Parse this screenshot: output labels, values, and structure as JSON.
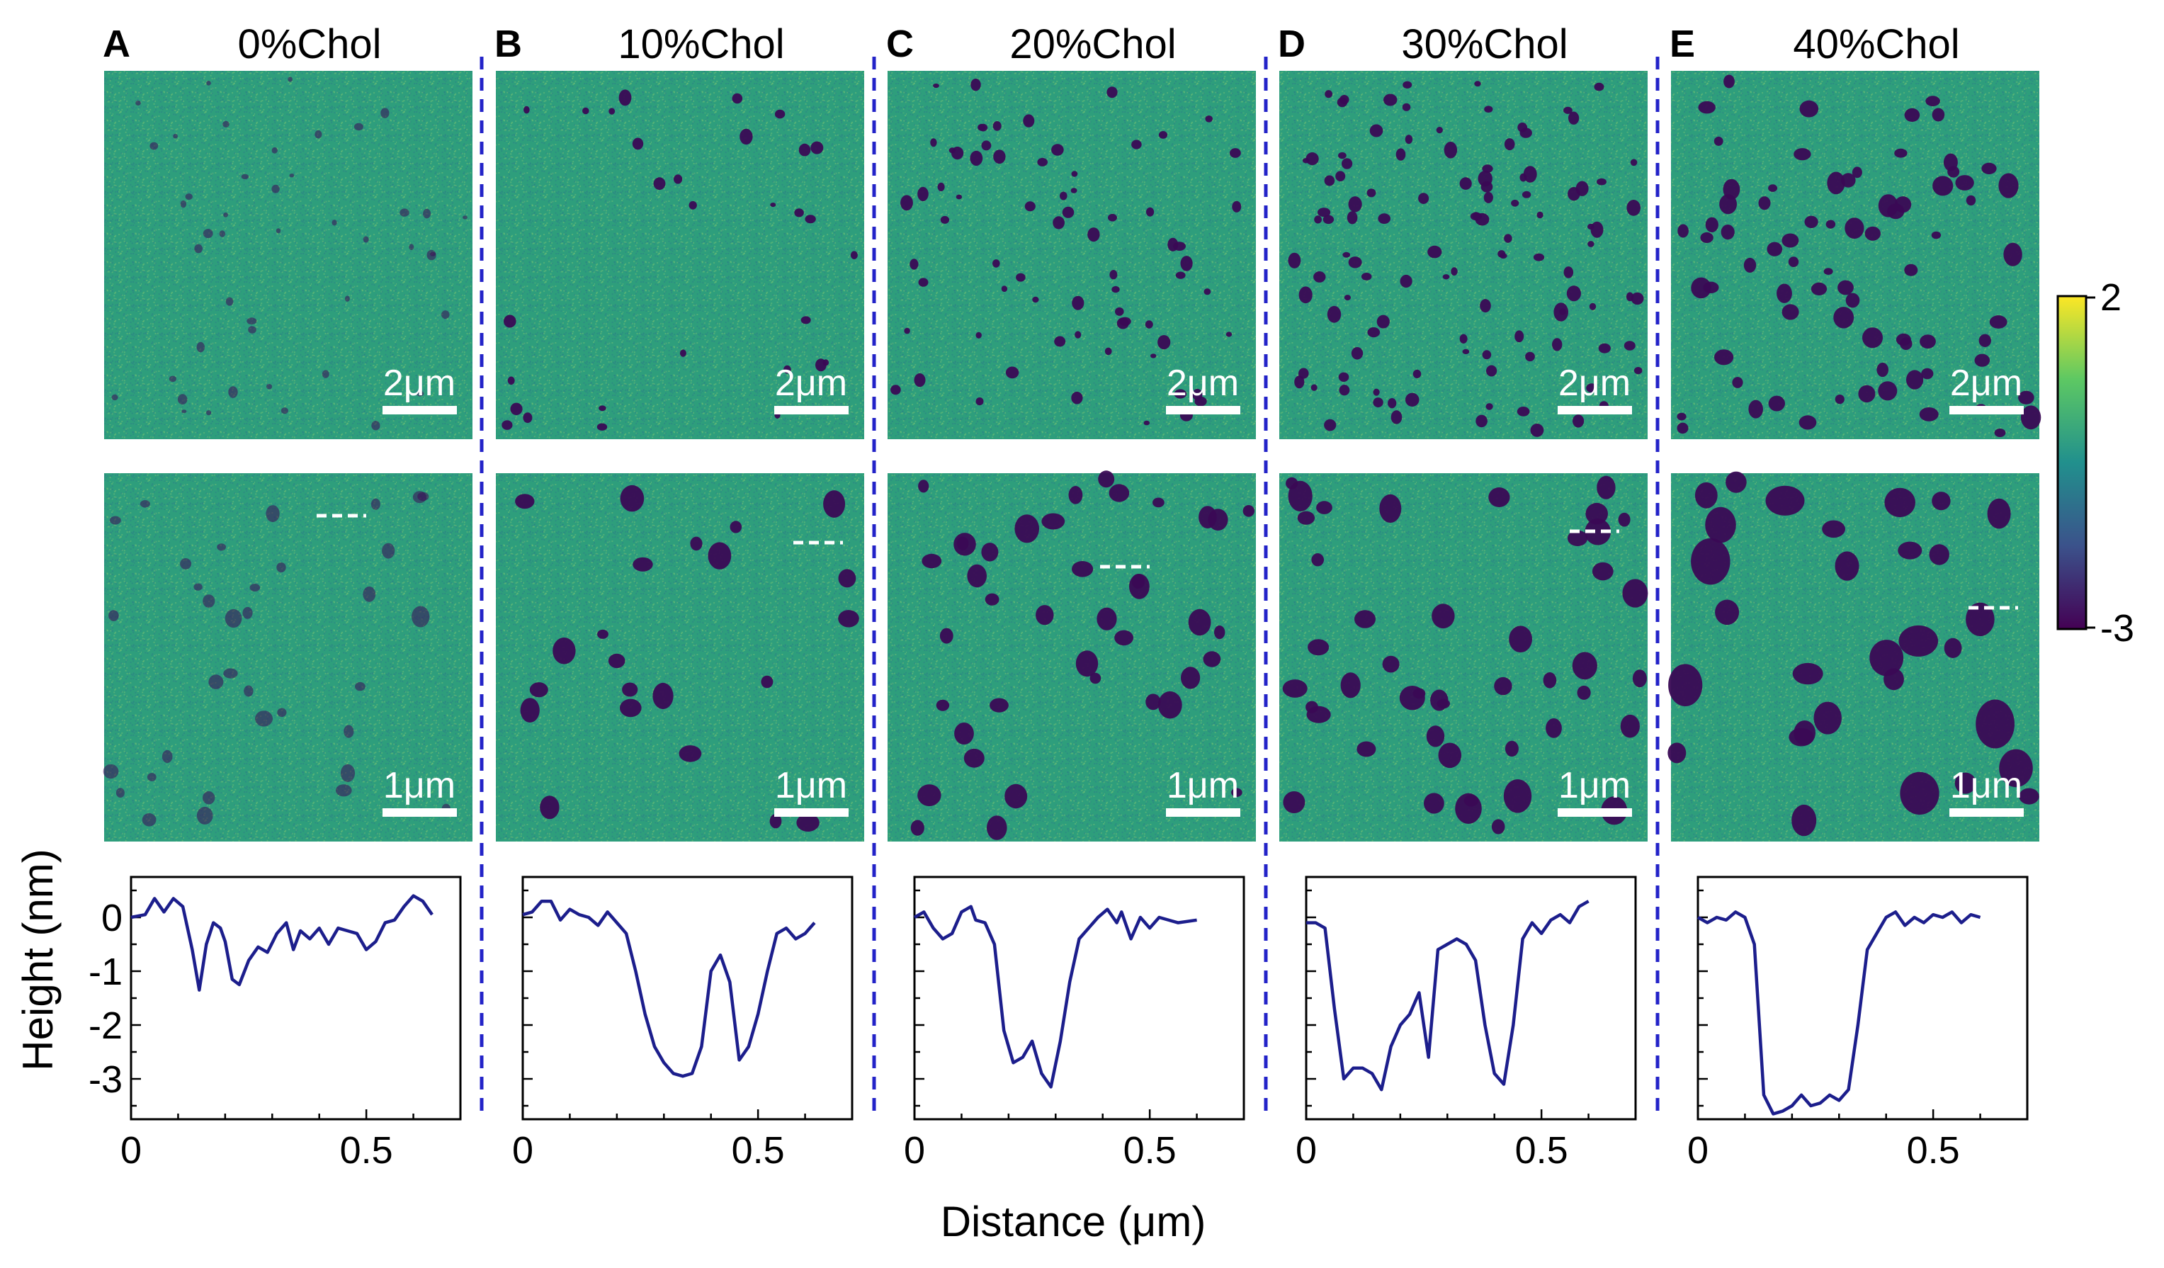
{
  "panels": [
    {
      "letter": "A",
      "title": "0%Chol",
      "scale_top": "2μm",
      "scale_mid": "1μm",
      "dots_top": 45,
      "dots_mid": 35,
      "dot_size": 0.5,
      "profile": [
        [
          0,
          0
        ],
        [
          0.03,
          0.05
        ],
        [
          0.05,
          0.35
        ],
        [
          0.07,
          0.1
        ],
        [
          0.09,
          0.35
        ],
        [
          0.11,
          0.2
        ],
        [
          0.13,
          -0.6
        ],
        [
          0.145,
          -1.35
        ],
        [
          0.16,
          -0.5
        ],
        [
          0.175,
          -0.1
        ],
        [
          0.19,
          -0.2
        ],
        [
          0.2,
          -0.45
        ],
        [
          0.215,
          -1.15
        ],
        [
          0.23,
          -1.25
        ],
        [
          0.25,
          -0.8
        ],
        [
          0.27,
          -0.55
        ],
        [
          0.29,
          -0.65
        ],
        [
          0.31,
          -0.3
        ],
        [
          0.33,
          -0.1
        ],
        [
          0.345,
          -0.6
        ],
        [
          0.36,
          -0.25
        ],
        [
          0.38,
          -0.4
        ],
        [
          0.4,
          -0.2
        ],
        [
          0.42,
          -0.5
        ],
        [
          0.44,
          -0.2
        ],
        [
          0.46,
          -0.25
        ],
        [
          0.48,
          -0.3
        ],
        [
          0.5,
          -0.6
        ],
        [
          0.52,
          -0.45
        ],
        [
          0.54,
          -0.1
        ],
        [
          0.56,
          -0.05
        ],
        [
          0.58,
          0.2
        ],
        [
          0.6,
          0.4
        ],
        [
          0.62,
          0.3
        ],
        [
          0.64,
          0.05
        ]
      ]
    },
    {
      "letter": "B",
      "title": "10%Chol",
      "scale_top": "2μm",
      "scale_mid": "1μm",
      "dots_top": 30,
      "dots_mid": 22,
      "dot_size": 0.9,
      "profile": [
        [
          0,
          0.05
        ],
        [
          0.02,
          0.1
        ],
        [
          0.04,
          0.3
        ],
        [
          0.06,
          0.3
        ],
        [
          0.08,
          -0.05
        ],
        [
          0.1,
          0.15
        ],
        [
          0.12,
          0.05
        ],
        [
          0.14,
          0
        ],
        [
          0.16,
          -0.15
        ],
        [
          0.18,
          0.1
        ],
        [
          0.2,
          -0.1
        ],
        [
          0.22,
          -0.3
        ],
        [
          0.24,
          -1.0
        ],
        [
          0.26,
          -1.8
        ],
        [
          0.28,
          -2.4
        ],
        [
          0.3,
          -2.7
        ],
        [
          0.32,
          -2.9
        ],
        [
          0.34,
          -2.95
        ],
        [
          0.36,
          -2.9
        ],
        [
          0.38,
          -2.4
        ],
        [
          0.4,
          -1.0
        ],
        [
          0.42,
          -0.7
        ],
        [
          0.44,
          -1.2
        ],
        [
          0.46,
          -2.65
        ],
        [
          0.48,
          -2.4
        ],
        [
          0.5,
          -1.8
        ],
        [
          0.52,
          -1.0
        ],
        [
          0.54,
          -0.3
        ],
        [
          0.56,
          -0.2
        ],
        [
          0.58,
          -0.4
        ],
        [
          0.6,
          -0.3
        ],
        [
          0.62,
          -0.1
        ]
      ]
    },
    {
      "letter": "C",
      "title": "20%Chol",
      "scale_top": "2μm",
      "scale_mid": "1μm",
      "dots_top": 70,
      "dots_mid": 40,
      "dot_size": 0.9,
      "profile": [
        [
          0,
          0
        ],
        [
          0.02,
          0.1
        ],
        [
          0.04,
          -0.2
        ],
        [
          0.06,
          -0.4
        ],
        [
          0.08,
          -0.3
        ],
        [
          0.1,
          0.1
        ],
        [
          0.12,
          0.2
        ],
        [
          0.13,
          -0.05
        ],
        [
          0.15,
          -0.1
        ],
        [
          0.17,
          -0.5
        ],
        [
          0.19,
          -2.1
        ],
        [
          0.21,
          -2.7
        ],
        [
          0.23,
          -2.6
        ],
        [
          0.25,
          -2.3
        ],
        [
          0.27,
          -2.9
        ],
        [
          0.29,
          -3.15
        ],
        [
          0.31,
          -2.3
        ],
        [
          0.33,
          -1.2
        ],
        [
          0.35,
          -0.4
        ],
        [
          0.37,
          -0.2
        ],
        [
          0.39,
          0
        ],
        [
          0.41,
          0.15
        ],
        [
          0.43,
          -0.1
        ],
        [
          0.44,
          0.1
        ],
        [
          0.46,
          -0.4
        ],
        [
          0.48,
          0
        ],
        [
          0.5,
          -0.2
        ],
        [
          0.52,
          0
        ],
        [
          0.56,
          -0.1
        ],
        [
          0.6,
          -0.05
        ]
      ]
    },
    {
      "letter": "D",
      "title": "30%Chol",
      "scale_top": "2μm",
      "scale_mid": "1μm",
      "dots_top": 110,
      "dots_mid": 45,
      "dot_size": 1.1,
      "profile": [
        [
          0,
          -0.1
        ],
        [
          0.02,
          -0.1
        ],
        [
          0.04,
          -0.2
        ],
        [
          0.06,
          -1.7
        ],
        [
          0.08,
          -3.0
        ],
        [
          0.1,
          -2.8
        ],
        [
          0.12,
          -2.8
        ],
        [
          0.14,
          -2.9
        ],
        [
          0.16,
          -3.2
        ],
        [
          0.18,
          -2.4
        ],
        [
          0.2,
          -2.0
        ],
        [
          0.22,
          -1.8
        ],
        [
          0.24,
          -1.4
        ],
        [
          0.26,
          -2.6
        ],
        [
          0.28,
          -0.6
        ],
        [
          0.3,
          -0.5
        ],
        [
          0.32,
          -0.4
        ],
        [
          0.34,
          -0.5
        ],
        [
          0.36,
          -0.8
        ],
        [
          0.38,
          -2.0
        ],
        [
          0.4,
          -2.9
        ],
        [
          0.42,
          -3.1
        ],
        [
          0.44,
          -2.0
        ],
        [
          0.46,
          -0.4
        ],
        [
          0.48,
          -0.1
        ],
        [
          0.5,
          -0.3
        ],
        [
          0.52,
          -0.05
        ],
        [
          0.54,
          0.05
        ],
        [
          0.56,
          -0.1
        ],
        [
          0.58,
          0.2
        ],
        [
          0.6,
          0.3
        ]
      ]
    },
    {
      "letter": "E",
      "title": "40%Chol",
      "scale_top": "2μm",
      "scale_mid": "1μm",
      "dots_top": 75,
      "dots_mid": 30,
      "dot_size": 1.9,
      "profile": [
        [
          0,
          0
        ],
        [
          0.02,
          -0.1
        ],
        [
          0.04,
          0
        ],
        [
          0.06,
          -0.05
        ],
        [
          0.08,
          0.1
        ],
        [
          0.1,
          0
        ],
        [
          0.12,
          -0.5
        ],
        [
          0.14,
          -3.3
        ],
        [
          0.16,
          -3.65
        ],
        [
          0.18,
          -3.6
        ],
        [
          0.2,
          -3.5
        ],
        [
          0.22,
          -3.3
        ],
        [
          0.24,
          -3.5
        ],
        [
          0.26,
          -3.45
        ],
        [
          0.28,
          -3.3
        ],
        [
          0.3,
          -3.4
        ],
        [
          0.32,
          -3.2
        ],
        [
          0.34,
          -2.0
        ],
        [
          0.36,
          -0.6
        ],
        [
          0.38,
          -0.3
        ],
        [
          0.4,
          0
        ],
        [
          0.42,
          0.1
        ],
        [
          0.44,
          -0.15
        ],
        [
          0.46,
          0
        ],
        [
          0.48,
          -0.1
        ],
        [
          0.5,
          0.05
        ],
        [
          0.52,
          0
        ],
        [
          0.54,
          0.1
        ],
        [
          0.56,
          -0.1
        ],
        [
          0.58,
          0.05
        ],
        [
          0.6,
          0
        ]
      ]
    }
  ],
  "colorbar": {
    "max_label": "2",
    "min_label": "-3",
    "colors": [
      "#440154",
      "#3b528b",
      "#21908d",
      "#5dc863",
      "#fde725"
    ]
  },
  "image_colors": {
    "background": "#2e9e7c",
    "dip": "#3a0a55"
  },
  "profile_color": "#1c1e8c",
  "divider_color": "#2323c8",
  "chart_data": {
    "type": "line",
    "title": "",
    "xlabel": "Distance (μm)",
    "ylabel": "Height (nm)",
    "xlim": [
      0,
      0.7
    ],
    "ylim": [
      -3.75,
      0.75
    ],
    "x_ticks": [
      "0",
      "0.5"
    ],
    "y_ticks": [
      "0",
      "-1",
      "-2",
      "-3"
    ],
    "series_names": [
      "0%Chol",
      "10%Chol",
      "20%Chol",
      "30%Chol",
      "40%Chol"
    ]
  }
}
